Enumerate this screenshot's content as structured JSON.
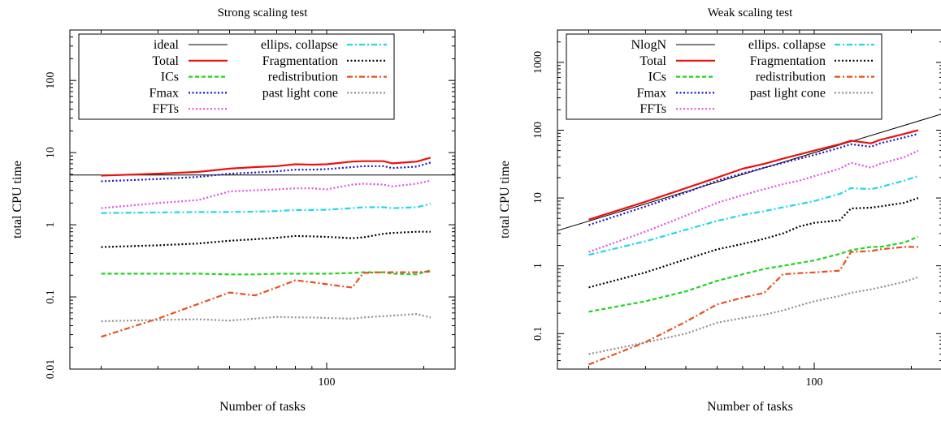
{
  "chart_data": [
    {
      "type": "line",
      "title": "Strong scaling test",
      "xlabel": "Number of tasks",
      "ylabel": "total CPU time",
      "xscale": "log",
      "yscale": "log",
      "xlim": [
        16,
        250
      ],
      "ylim": [
        0.01,
        500
      ],
      "xticks": [
        {
          "value": 100,
          "label": "100"
        }
      ],
      "yticks": [
        {
          "value": 0.01,
          "label": "0.01"
        },
        {
          "value": 0.1,
          "label": "0.1"
        },
        {
          "value": 1,
          "label": "1"
        },
        {
          "value": 10,
          "label": "10"
        },
        {
          "value": 100,
          "label": "100"
        }
      ],
      "grid": false,
      "legend_position": "top-left",
      "series": [
        {
          "name": "ideal",
          "color": "#000000",
          "dash": "solid",
          "x": [
            10,
            400
          ],
          "y": [
            4.9,
            4.9
          ]
        },
        {
          "name": "Total",
          "color": "#e8130f",
          "dash": "solid",
          "x": [
            20,
            30,
            40,
            50,
            60,
            70,
            80,
            90,
            100,
            120,
            130,
            150,
            160,
            190,
            210
          ],
          "y": [
            4.8,
            5.1,
            5.4,
            6.0,
            6.3,
            6.5,
            6.9,
            6.8,
            6.9,
            7.5,
            7.6,
            7.6,
            7.1,
            7.5,
            8.5
          ]
        },
        {
          "name": "ICs",
          "color": "#1ed61e",
          "dash": "dash",
          "x": [
            20,
            30,
            40,
            50,
            60,
            70,
            80,
            90,
            100,
            120,
            130,
            150,
            160,
            190,
            210
          ],
          "y": [
            0.21,
            0.21,
            0.21,
            0.205,
            0.205,
            0.21,
            0.21,
            0.21,
            0.21,
            0.215,
            0.22,
            0.22,
            0.21,
            0.205,
            0.235
          ]
        },
        {
          "name": "Fmax",
          "color": "#1616c8",
          "dash": "dot",
          "x": [
            20,
            30,
            40,
            50,
            60,
            70,
            80,
            90,
            100,
            120,
            130,
            150,
            160,
            190,
            210
          ],
          "y": [
            4.0,
            4.3,
            4.6,
            5.1,
            5.3,
            5.5,
            5.8,
            5.8,
            5.9,
            6.3,
            6.5,
            6.5,
            6.1,
            6.4,
            7.3
          ]
        },
        {
          "name": "FFTs",
          "color": "#e050e0",
          "dash": "dot",
          "x": [
            20,
            30,
            40,
            50,
            60,
            70,
            80,
            90,
            100,
            120,
            130,
            150,
            160,
            190,
            210
          ],
          "y": [
            1.7,
            2.0,
            2.2,
            2.9,
            3.0,
            3.1,
            3.2,
            3.2,
            3.1,
            3.6,
            3.7,
            3.6,
            3.4,
            3.7,
            4.1
          ]
        },
        {
          "name": "ellips. collapse",
          "color": "#20d8e8",
          "dash": "dashdot",
          "x": [
            20,
            30,
            40,
            50,
            60,
            70,
            80,
            90,
            100,
            120,
            130,
            150,
            160,
            190,
            210
          ],
          "y": [
            1.45,
            1.48,
            1.5,
            1.5,
            1.52,
            1.55,
            1.6,
            1.6,
            1.62,
            1.7,
            1.75,
            1.75,
            1.7,
            1.75,
            1.95
          ]
        },
        {
          "name": "Fragmentation",
          "color": "#000000",
          "dash": "dot",
          "x": [
            20,
            30,
            40,
            50,
            60,
            70,
            80,
            90,
            100,
            120,
            130,
            150,
            160,
            190,
            210
          ],
          "y": [
            0.49,
            0.52,
            0.55,
            0.6,
            0.63,
            0.66,
            0.7,
            0.69,
            0.68,
            0.65,
            0.67,
            0.75,
            0.77,
            0.8,
            0.8
          ]
        },
        {
          "name": "redistribution",
          "color": "#e8501e",
          "dash": "dashdot",
          "x": [
            20,
            30,
            40,
            50,
            60,
            70,
            80,
            90,
            100,
            120,
            130,
            150,
            160,
            190,
            210
          ],
          "y": [
            0.028,
            0.05,
            0.08,
            0.115,
            0.105,
            0.135,
            0.17,
            0.16,
            0.15,
            0.135,
            0.215,
            0.22,
            0.22,
            0.22,
            0.225
          ]
        },
        {
          "name": "past light cone",
          "color": "#909090",
          "dash": "dot",
          "x": [
            20,
            30,
            40,
            50,
            60,
            70,
            80,
            90,
            100,
            120,
            130,
            150,
            160,
            190,
            210
          ],
          "y": [
            0.046,
            0.048,
            0.049,
            0.047,
            0.05,
            0.053,
            0.052,
            0.052,
            0.051,
            0.05,
            0.052,
            0.054,
            0.055,
            0.058,
            0.052
          ]
        }
      ]
    },
    {
      "type": "line",
      "title": "Weak scaling test",
      "xlabel": "Number of tasks",
      "ylabel": "total CPU time",
      "xscale": "log",
      "yscale": "log",
      "xlim": [
        16,
        250
      ],
      "ylim": [
        0.03,
        3000
      ],
      "xticks": [
        {
          "value": 100,
          "label": "100"
        }
      ],
      "yticks": [
        {
          "value": 0.1,
          "label": "0.1"
        },
        {
          "value": 1,
          "label": "1"
        },
        {
          "value": 10,
          "label": "10"
        },
        {
          "value": 100,
          "label": "100"
        },
        {
          "value": 1000,
          "label": "1000"
        }
      ],
      "grid": false,
      "legend_position": "top-left",
      "series": [
        {
          "name": "NlogN",
          "color": "#000000",
          "dash": "solid",
          "x": [
            16,
            250
          ],
          "y": [
            3.3,
            175
          ]
        },
        {
          "name": "Total",
          "color": "#e8130f",
          "dash": "solid",
          "x": [
            20,
            30,
            40,
            50,
            60,
            70,
            80,
            90,
            100,
            120,
            130,
            150,
            160,
            190,
            210
          ],
          "y": [
            4.8,
            8.8,
            14,
            20,
            27,
            32,
            38,
            44,
            50,
            62,
            70,
            64,
            72,
            88,
            100
          ]
        },
        {
          "name": "ICs",
          "color": "#1ed61e",
          "dash": "dash",
          "x": [
            20,
            30,
            40,
            50,
            60,
            70,
            80,
            90,
            100,
            120,
            130,
            150,
            160,
            190,
            210
          ],
          "y": [
            0.21,
            0.3,
            0.42,
            0.6,
            0.75,
            0.9,
            1.0,
            1.1,
            1.2,
            1.5,
            1.7,
            1.9,
            1.9,
            2.2,
            2.7
          ]
        },
        {
          "name": "Fmax",
          "color": "#1616c8",
          "dash": "dot",
          "x": [
            20,
            30,
            40,
            50,
            60,
            70,
            80,
            90,
            100,
            120,
            130,
            150,
            160,
            190,
            210
          ],
          "y": [
            4.0,
            7.5,
            12,
            18,
            23,
            28,
            33,
            38,
            43,
            55,
            62,
            57,
            64,
            78,
            88
          ]
        },
        {
          "name": "FFTs",
          "color": "#e050e0",
          "dash": "dot",
          "x": [
            20,
            30,
            40,
            50,
            60,
            70,
            80,
            90,
            100,
            120,
            130,
            150,
            160,
            190,
            210
          ],
          "y": [
            1.6,
            3.2,
            5.5,
            8.5,
            11,
            13.5,
            16,
            18,
            21,
            27,
            33,
            28,
            32,
            40,
            50
          ]
        },
        {
          "name": "ellips. collapse",
          "color": "#20d8e8",
          "dash": "dashdot",
          "x": [
            20,
            30,
            40,
            50,
            60,
            70,
            80,
            90,
            100,
            120,
            130,
            150,
            160,
            190,
            210
          ],
          "y": [
            1.45,
            2.3,
            3.4,
            4.6,
            5.6,
            6.4,
            7.3,
            8.1,
            9.0,
            11.5,
            14,
            13.5,
            14.5,
            18,
            21
          ]
        },
        {
          "name": "Fragmentation",
          "color": "#000000",
          "dash": "dot",
          "x": [
            20,
            30,
            40,
            50,
            60,
            70,
            80,
            90,
            100,
            120,
            130,
            150,
            160,
            190,
            210
          ],
          "y": [
            0.48,
            0.8,
            1.25,
            1.75,
            2.1,
            2.5,
            3.0,
            3.8,
            4.3,
            4.7,
            7.0,
            7.2,
            7.5,
            8.5,
            10
          ]
        },
        {
          "name": "redistribution",
          "color": "#e8501e",
          "dash": "dashdot",
          "x": [
            20,
            30,
            40,
            50,
            60,
            70,
            80,
            90,
            100,
            120,
            130,
            150,
            160,
            190,
            210
          ],
          "y": [
            0.035,
            0.075,
            0.15,
            0.27,
            0.34,
            0.4,
            0.75,
            0.78,
            0.8,
            0.85,
            1.6,
            1.65,
            1.75,
            1.9,
            1.9
          ]
        },
        {
          "name": "past light cone",
          "color": "#909090",
          "dash": "dot",
          "x": [
            20,
            30,
            40,
            50,
            60,
            70,
            80,
            90,
            100,
            120,
            130,
            150,
            160,
            190,
            210
          ],
          "y": [
            0.05,
            0.074,
            0.1,
            0.145,
            0.17,
            0.19,
            0.22,
            0.26,
            0.3,
            0.36,
            0.4,
            0.45,
            0.48,
            0.58,
            0.68
          ]
        }
      ]
    }
  ]
}
